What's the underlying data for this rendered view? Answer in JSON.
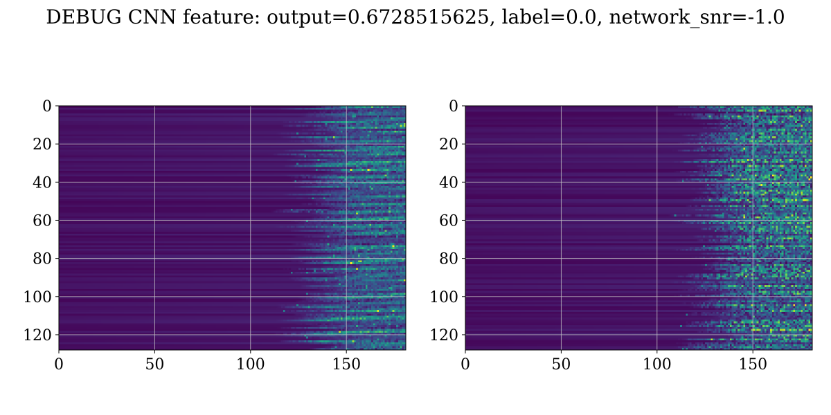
{
  "title": "DEBUG CNN feature: output=0.6728515625, label=0.0, network_snr=-1.0",
  "colors": {
    "background": "#ffffff",
    "grid": "#c8c8c8",
    "colormap": "viridis"
  },
  "chart_data": [
    {
      "type": "heatmap",
      "name": "",
      "colormap": "viridis",
      "xlim": [
        0,
        181
      ],
      "ylim": [
        128,
        0
      ],
      "xticks": [
        0,
        50,
        100,
        150
      ],
      "yticks": [
        0,
        20,
        40,
        60,
        80,
        100,
        120
      ],
      "xtick_labels": [
        "0",
        "50",
        "100",
        "150"
      ],
      "ytick_labels": [
        "0",
        "20",
        "40",
        "60",
        "80",
        "100",
        "120"
      ],
      "grid": true,
      "rows": 128,
      "cols": 181,
      "activity_onset_col": 125,
      "pattern": "smooth"
    },
    {
      "type": "heatmap",
      "name": "",
      "colormap": "viridis",
      "xlim": [
        0,
        181
      ],
      "ylim": [
        128,
        0
      ],
      "xticks": [
        0,
        50,
        100,
        150
      ],
      "yticks": [
        0,
        20,
        40,
        60,
        80,
        100,
        120
      ],
      "xtick_labels": [
        "0",
        "50",
        "100",
        "150"
      ],
      "ytick_labels": [
        "0",
        "20",
        "40",
        "60",
        "80",
        "100",
        "120"
      ],
      "grid": true,
      "rows": 128,
      "cols": 181,
      "activity_onset_col": 120,
      "pattern": "noisy"
    }
  ]
}
